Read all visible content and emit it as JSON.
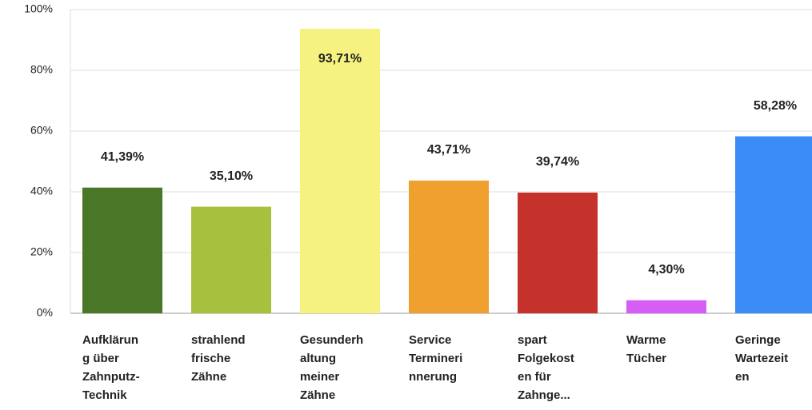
{
  "chart_data": {
    "type": "bar",
    "categories": [
      [
        "Aufklärun",
        "g über",
        "Zahnputz-",
        "Technik"
      ],
      [
        "strahlend",
        "frische",
        "Zähne"
      ],
      [
        "Gesunderh",
        "altung",
        "meiner",
        "Zähne"
      ],
      [
        "Service",
        "Termineri",
        "nnerung"
      ],
      [
        "spart",
        "Folgekost",
        "en für",
        "Zahnge..."
      ],
      [
        "Warme",
        "Tücher"
      ],
      [
        "Geringe",
        "Wartezeit",
        "en"
      ]
    ],
    "values": [
      41.39,
      35.1,
      93.71,
      43.71,
      39.74,
      4.3,
      58.28
    ],
    "value_labels": [
      "41,39%",
      "35,10%",
      "93,71%",
      "43,71%",
      "39,74%",
      "4,30%",
      "58,28%"
    ],
    "colors": [
      "#4a7628",
      "#a7c13f",
      "#f6f27f",
      "#f0a02e",
      "#c5312b",
      "#d65ef6",
      "#3b8cf8"
    ],
    "ylim": [
      0,
      100
    ],
    "yticks": [
      {
        "value": 0,
        "label": "0%"
      },
      {
        "value": 20,
        "label": "20%"
      },
      {
        "value": 40,
        "label": "40%"
      },
      {
        "value": 60,
        "label": "60%"
      },
      {
        "value": 80,
        "label": "80%"
      },
      {
        "value": 100,
        "label": "100%"
      }
    ],
    "grid": true
  }
}
